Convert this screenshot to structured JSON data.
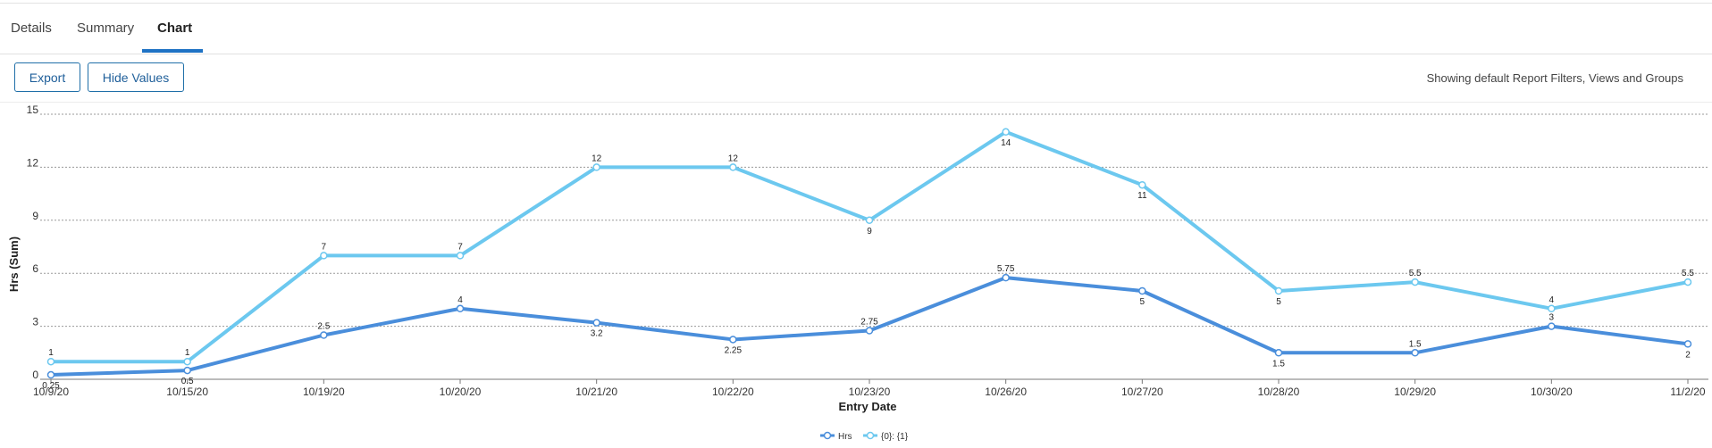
{
  "tabs": [
    {
      "label": "Details",
      "active": false
    },
    {
      "label": "Summary",
      "active": false
    },
    {
      "label": "Chart",
      "active": true
    }
  ],
  "toolbar": {
    "export_label": "Export",
    "hide_values_label": "Hide Values",
    "filters_status": "Showing default Report Filters, Views and Groups"
  },
  "colors": {
    "accent": "#1f72c4",
    "series_hrs": "#4a8edb",
    "series_other": "#6cc8ef",
    "button_border": "#1f6fa8"
  },
  "chart_data": {
    "type": "line",
    "xlabel": "Entry Date",
    "ylabel": "Hrs (Sum)",
    "ylim": [
      0,
      15
    ],
    "yticks": [
      0,
      3,
      6,
      9,
      12,
      15
    ],
    "grid": true,
    "legend_position": "bottom-center",
    "categories": [
      "10/9/20",
      "10/15/20",
      "10/19/20",
      "10/20/20",
      "10/21/20",
      "10/22/20",
      "10/23/20",
      "10/26/20",
      "10/27/20",
      "10/28/20",
      "10/29/20",
      "10/30/20",
      "11/2/20"
    ],
    "series": [
      {
        "name": "Hrs",
        "color": "#4a8edb",
        "values": [
          0.25,
          0.5,
          2.5,
          4,
          3.2,
          2.25,
          2.75,
          5.75,
          5,
          1.5,
          1.5,
          3,
          2
        ]
      },
      {
        "name": "{0}: {1}",
        "color": "#6cc8ef",
        "values": [
          1,
          1,
          7,
          7,
          12,
          12,
          9,
          14,
          11,
          5,
          5.5,
          4,
          5.5
        ]
      }
    ]
  }
}
